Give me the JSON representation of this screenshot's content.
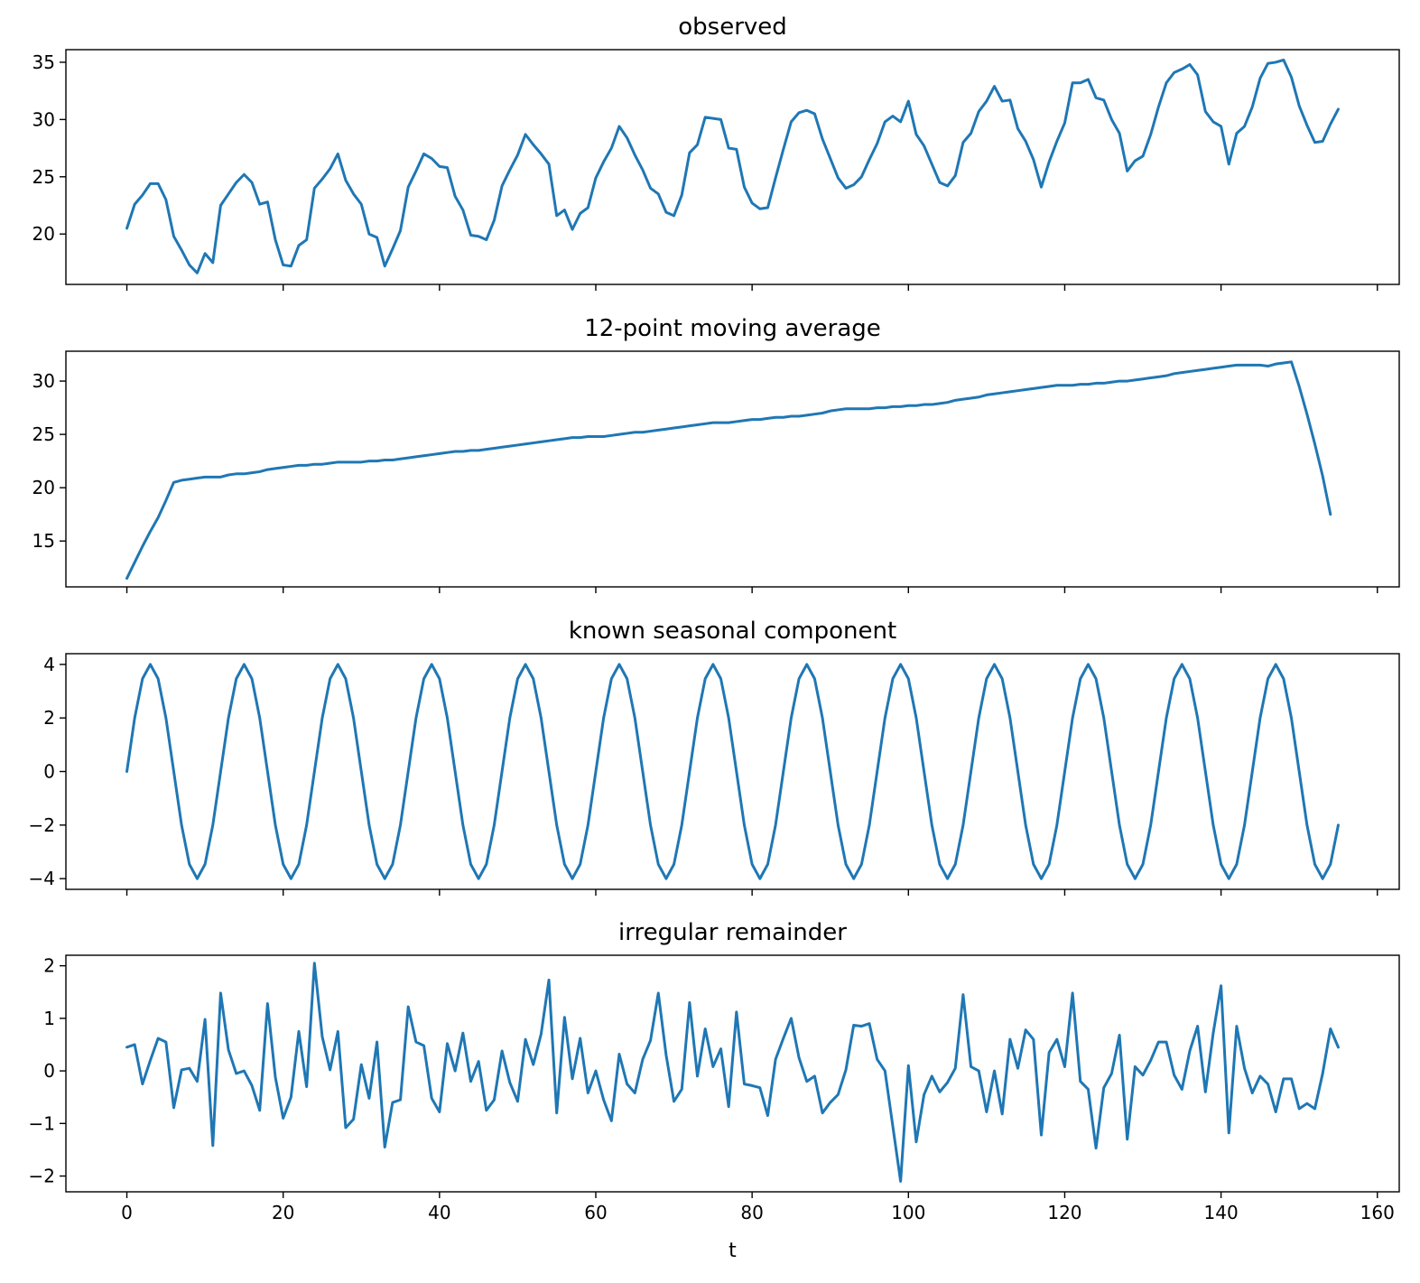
{
  "chart_data": {
    "type": "line",
    "line_color": "#1f77b4",
    "xlabel": "t",
    "xlim": [
      -7.8,
      162.8
    ],
    "xticks": [
      0,
      20,
      40,
      60,
      80,
      100,
      120,
      140,
      160
    ],
    "xtick_labels": [
      "0",
      "20",
      "40",
      "60",
      "80",
      "100",
      "120",
      "140",
      "160"
    ],
    "sharex": true,
    "panels": [
      {
        "title": "observed",
        "ylim": [
          15.6,
          36.1
        ],
        "yticks": [
          20,
          25,
          30,
          35
        ],
        "ytick_labels": [
          "20",
          "25",
          "30",
          "35"
        ],
        "x_start": 0,
        "values": [
          20.5,
          22.6,
          23.4,
          24.4,
          24.4,
          23.0,
          19.8,
          18.6,
          17.3,
          16.6,
          18.3,
          17.5,
          22.5,
          23.5,
          24.5,
          25.2,
          24.5,
          22.6,
          22.8,
          19.5,
          17.3,
          17.2,
          19.0,
          19.5,
          24.0,
          24.8,
          25.7,
          27.0,
          24.7,
          23.5,
          22.6,
          20.0,
          19.7,
          17.2,
          18.7,
          20.3,
          24.1,
          25.5,
          27.0,
          26.6,
          25.9,
          25.8,
          23.3,
          22.1,
          19.9,
          19.8,
          19.5,
          21.2,
          24.2,
          25.6,
          26.9,
          28.7,
          27.8,
          27.0,
          26.1,
          21.6,
          22.1,
          20.4,
          21.8,
          22.3,
          24.9,
          26.3,
          27.5,
          29.4,
          28.4,
          26.9,
          25.6,
          24.0,
          23.5,
          21.9,
          21.6,
          23.4,
          27.1,
          27.8,
          30.2,
          30.1,
          30.0,
          27.5,
          27.4,
          24.1,
          22.7,
          22.2,
          22.3,
          24.9,
          27.4,
          29.8,
          30.6,
          30.8,
          30.5,
          28.3,
          26.6,
          24.9,
          24.0,
          24.3,
          25.0,
          26.5,
          27.9,
          29.8,
          30.3,
          29.8,
          31.6,
          28.7,
          27.7,
          26.1,
          24.5,
          24.2,
          25.1,
          28.0,
          28.8,
          30.7,
          31.6,
          32.9,
          31.6,
          31.7,
          29.2,
          28.1,
          26.5,
          24.1,
          26.3,
          28.1,
          29.7,
          33.2,
          33.2,
          33.5,
          31.9,
          31.7,
          30.0,
          28.8,
          25.5,
          26.4,
          26.8,
          28.7,
          31.1,
          33.2,
          34.1,
          34.4,
          34.8,
          33.9,
          30.7,
          29.8,
          29.4,
          26.1,
          28.8,
          29.4,
          31.1,
          33.6,
          34.9,
          35.0,
          35.2,
          33.7,
          31.2,
          29.5,
          28.0,
          28.1,
          29.6,
          30.9
        ]
      },
      {
        "title": "12-point moving average",
        "ylim": [
          10.7,
          32.8
        ],
        "yticks": [
          15,
          20,
          25,
          30
        ],
        "ytick_labels": [
          "15",
          "20",
          "25",
          "30"
        ],
        "x_start": 0,
        "values": [
          11.5,
          13.0,
          14.5,
          15.9,
          17.2,
          18.8,
          20.5,
          20.7,
          20.8,
          20.9,
          21.0,
          21.0,
          21.0,
          21.2,
          21.3,
          21.3,
          21.4,
          21.5,
          21.7,
          21.8,
          21.9,
          22.0,
          22.1,
          22.1,
          22.2,
          22.2,
          22.3,
          22.4,
          22.4,
          22.4,
          22.4,
          22.5,
          22.5,
          22.6,
          22.6,
          22.7,
          22.8,
          22.9,
          23.0,
          23.1,
          23.2,
          23.3,
          23.4,
          23.4,
          23.5,
          23.5,
          23.6,
          23.7,
          23.8,
          23.9,
          24.0,
          24.1,
          24.2,
          24.3,
          24.4,
          24.5,
          24.6,
          24.7,
          24.7,
          24.8,
          24.8,
          24.8,
          24.9,
          25.0,
          25.1,
          25.2,
          25.2,
          25.3,
          25.4,
          25.5,
          25.6,
          25.7,
          25.8,
          25.9,
          26.0,
          26.1,
          26.1,
          26.1,
          26.2,
          26.3,
          26.4,
          26.4,
          26.5,
          26.6,
          26.6,
          26.7,
          26.7,
          26.8,
          26.9,
          27.0,
          27.2,
          27.3,
          27.4,
          27.4,
          27.4,
          27.4,
          27.5,
          27.5,
          27.6,
          27.6,
          27.7,
          27.7,
          27.8,
          27.8,
          27.9,
          28.0,
          28.2,
          28.3,
          28.4,
          28.5,
          28.7,
          28.8,
          28.9,
          29.0,
          29.1,
          29.2,
          29.3,
          29.4,
          29.5,
          29.6,
          29.6,
          29.6,
          29.7,
          29.7,
          29.8,
          29.8,
          29.9,
          30.0,
          30.0,
          30.1,
          30.2,
          30.3,
          30.4,
          30.5,
          30.7,
          30.8,
          30.9,
          31.0,
          31.1,
          31.2,
          31.3,
          31.4,
          31.5,
          31.5,
          31.5,
          31.5,
          31.4,
          31.6,
          31.7,
          31.8,
          29.5,
          26.9,
          24.1,
          21.1,
          17.5
        ]
      },
      {
        "title": "known seasonal component",
        "ylim": [
          -4.4,
          4.4
        ],
        "yticks": [
          -4,
          -2,
          0,
          2,
          4
        ],
        "ytick_labels": [
          "−4",
          "−2",
          "0",
          "2",
          "4"
        ],
        "x_start": 0,
        "period": 12,
        "amplitude": 4,
        "count": 156
      },
      {
        "title": "irregular remainder",
        "ylim": [
          -2.3,
          2.2
        ],
        "yticks": [
          -2,
          -1,
          0,
          1,
          2
        ],
        "ytick_labels": [
          "−2",
          "−1",
          "0",
          "1",
          "2"
        ],
        "x_start": 0,
        "values": [
          0.45,
          0.5,
          -0.25,
          0.2,
          0.62,
          0.55,
          -0.7,
          0.02,
          0.05,
          -0.2,
          0.98,
          -1.42,
          1.48,
          0.4,
          -0.05,
          0.0,
          -0.28,
          -0.75,
          1.28,
          -0.12,
          -0.9,
          -0.5,
          0.75,
          -0.3,
          2.05,
          0.65,
          0.02,
          0.75,
          -1.08,
          -0.92,
          0.12,
          -0.52,
          0.55,
          -1.45,
          -0.6,
          -0.55,
          1.22,
          0.55,
          0.48,
          -0.52,
          -0.78,
          0.52,
          0.0,
          0.72,
          -0.2,
          0.18,
          -0.75,
          -0.55,
          0.38,
          -0.22,
          -0.58,
          0.6,
          0.12,
          0.7,
          1.73,
          -0.8,
          1.02,
          -0.15,
          0.62,
          -0.42,
          0.0,
          -0.55,
          -0.95,
          0.32,
          -0.25,
          -0.42,
          0.22,
          0.58,
          1.48,
          0.3,
          -0.58,
          -0.35,
          1.3,
          -0.1,
          0.8,
          0.08,
          0.42,
          -0.68,
          1.12,
          -0.25,
          -0.28,
          -0.32,
          -0.85,
          0.22,
          0.62,
          1.0,
          0.25,
          -0.2,
          -0.1,
          -0.8,
          -0.6,
          -0.45,
          0.02,
          0.87,
          0.85,
          0.9,
          0.22,
          0.0,
          -1.05,
          -2.1,
          0.1,
          -1.35,
          -0.45,
          -0.1,
          -0.4,
          -0.22,
          0.05,
          1.45,
          0.08,
          0.0,
          -0.78,
          0.0,
          -0.82,
          0.6,
          0.05,
          0.78,
          0.6,
          -1.22,
          0.35,
          0.6,
          0.08,
          1.48,
          -0.2,
          -0.35,
          -1.47,
          -0.32,
          -0.05,
          0.68,
          -1.3,
          0.08,
          -0.08,
          0.2,
          0.55,
          0.55,
          -0.08,
          -0.35,
          0.38,
          0.85,
          -0.4,
          0.72,
          1.62,
          -1.18,
          0.85,
          0.05,
          -0.42,
          -0.1,
          -0.25,
          -0.78,
          -0.15,
          -0.15,
          -0.72,
          -0.62,
          -0.72,
          -0.05,
          0.8,
          0.45
        ]
      }
    ]
  }
}
